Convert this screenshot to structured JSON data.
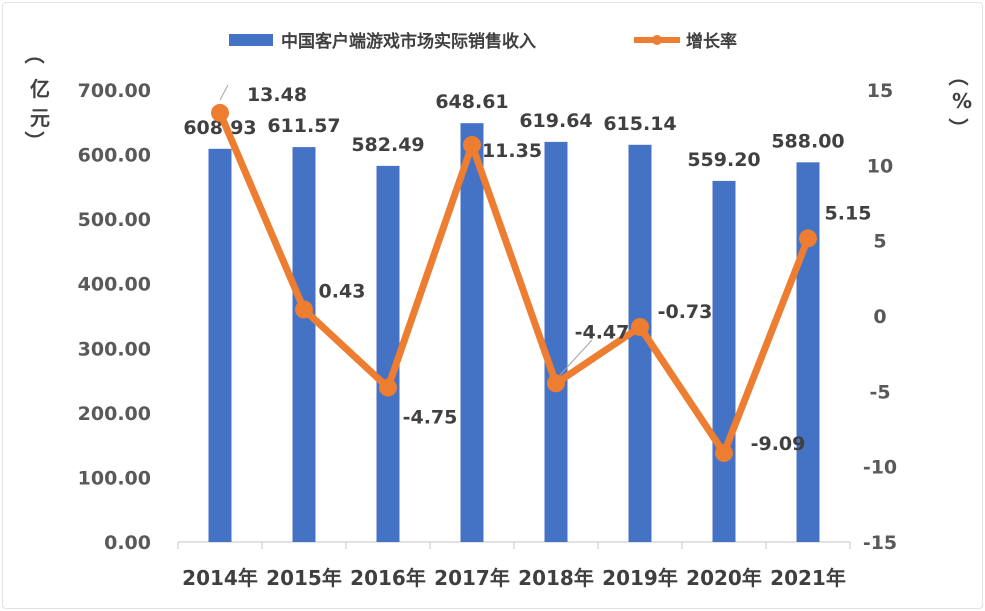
{
  "chart_data": {
    "type": "bar",
    "categories": [
      "2014年",
      "2015年",
      "2016年",
      "2017年",
      "2018年",
      "2019年",
      "2020年",
      "2021年"
    ],
    "series": [
      {
        "name": "中国客户端游戏市场实际销售收入",
        "type": "bar",
        "axis": "left",
        "color": "#4472C4",
        "values": [
          608.93,
          611.57,
          582.49,
          648.61,
          619.64,
          615.14,
          559.2,
          588.0
        ],
        "labels": [
          "608.93",
          "611.57",
          "582.49",
          "648.61",
          "619.64",
          "615.14",
          "559.20",
          "588.00"
        ]
      },
      {
        "name": "增长率",
        "type": "line",
        "axis": "right",
        "color": "#ED7D31",
        "values": [
          13.48,
          0.43,
          -4.75,
          11.35,
          -4.47,
          -0.73,
          -9.09,
          5.15
        ],
        "labels": [
          "13.48",
          "0.43",
          "-4.75",
          "11.35",
          "-4.47",
          "-0.73",
          "-9.09",
          "5.15"
        ]
      }
    ],
    "left_axis": {
      "unit_label": [
        "（",
        "亿",
        "元",
        "）"
      ],
      "ylim": [
        0,
        700
      ],
      "ticks": [
        "0.00",
        "100.00",
        "200.00",
        "300.00",
        "400.00",
        "500.00",
        "600.00",
        "700.00"
      ]
    },
    "right_axis": {
      "unit_label": [
        "（",
        "%",
        "）"
      ],
      "ylim": [
        -15,
        15
      ],
      "ticks": [
        "-15",
        "-10",
        "-5",
        "0",
        "5",
        "10",
        "15"
      ]
    },
    "grid": false,
    "legend_position": "top"
  }
}
